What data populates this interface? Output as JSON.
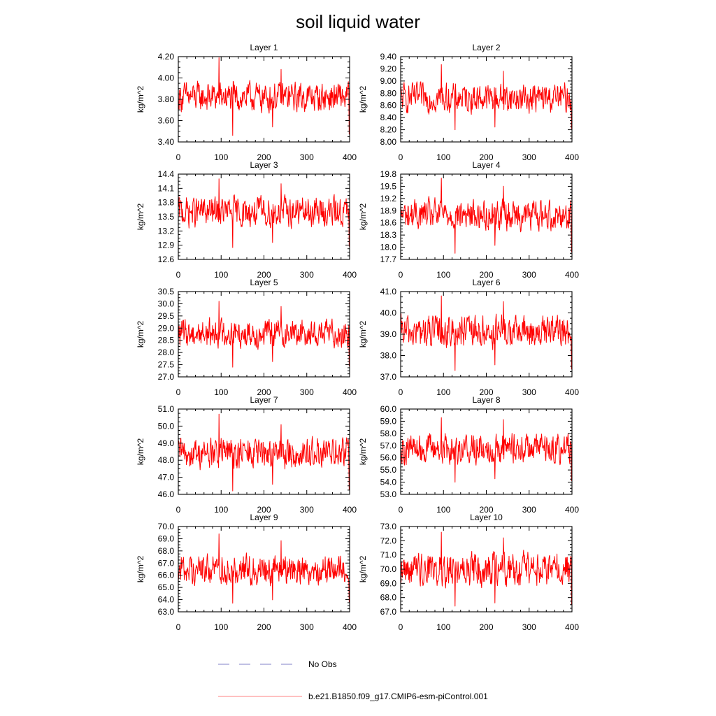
{
  "figure": {
    "title": "soil liquid water"
  },
  "legend": [
    {
      "label": "No Obs",
      "color": "#8080c8",
      "style": "dashed"
    },
    {
      "label": "b.e21.B1850.f09_g17.CMIP6-esm-piControl.001",
      "color": "#ff8080",
      "style": "solid"
    }
  ],
  "colors": {
    "series": "#ff0000",
    "obs": "#8080c8",
    "case": "#ff8080",
    "axis": "#000000"
  },
  "chart_data": [
    {
      "type": "line",
      "title": "Layer 1",
      "ylabel": "kg/m^2",
      "xlabel": "",
      "xlim": [
        0,
        400
      ],
      "ylim": [
        3.4,
        4.2
      ],
      "xticks": [
        0,
        100,
        200,
        300,
        400
      ],
      "yticks": [
        3.4,
        3.6,
        3.8,
        4.0,
        4.2
      ],
      "ytick_labels": [
        "3.40",
        "3.60",
        "3.80",
        "4.00",
        "4.20"
      ],
      "series": [
        {
          "name": "b.e21.B1850.f09_g17.CMIP6-esm-piControl.001",
          "n_points": 400,
          "mean": 3.82,
          "amplitude": 0.1,
          "min": 3.46,
          "max": 4.19
        }
      ]
    },
    {
      "type": "line",
      "title": "Layer 2",
      "ylabel": "kg/m^2",
      "xlabel": "",
      "xlim": [
        0,
        400
      ],
      "ylim": [
        8.0,
        9.4
      ],
      "xticks": [
        0,
        100,
        200,
        300,
        400
      ],
      "yticks": [
        8.0,
        8.2,
        8.4,
        8.6,
        8.8,
        9.0,
        9.2,
        9.4
      ],
      "ytick_labels": [
        "8.00",
        "8.20",
        "8.40",
        "8.60",
        "8.80",
        "9.00",
        "9.20",
        "9.40"
      ],
      "series": [
        {
          "name": "b.e21.B1850.f09_g17.CMIP6-esm-piControl.001",
          "n_points": 400,
          "mean": 8.72,
          "amplitude": 0.17,
          "min": 8.2,
          "max": 9.27
        }
      ]
    },
    {
      "type": "line",
      "title": "Layer 3",
      "ylabel": "kg/m^2",
      "xlabel": "",
      "xlim": [
        0,
        400
      ],
      "ylim": [
        12.6,
        14.4
      ],
      "xticks": [
        0,
        100,
        200,
        300,
        400
      ],
      "yticks": [
        12.6,
        12.9,
        13.2,
        13.5,
        13.8,
        14.1,
        14.4
      ],
      "ytick_labels": [
        "12.6",
        "12.9",
        "13.2",
        "13.5",
        "13.8",
        "14.1",
        "14.4"
      ],
      "series": [
        {
          "name": "b.e21.B1850.f09_g17.CMIP6-esm-piControl.001",
          "n_points": 400,
          "mean": 13.6,
          "amplitude": 0.23,
          "min": 12.85,
          "max": 14.3
        }
      ]
    },
    {
      "type": "line",
      "title": "Layer 4",
      "ylabel": "kg/m^2",
      "xlabel": "",
      "xlim": [
        0,
        400
      ],
      "ylim": [
        17.7,
        19.8
      ],
      "xticks": [
        0,
        100,
        200,
        300,
        400
      ],
      "yticks": [
        17.7,
        18.0,
        18.3,
        18.6,
        18.9,
        19.2,
        19.5,
        19.8
      ],
      "ytick_labels": [
        "17.7",
        "18.0",
        "18.3",
        "18.6",
        "18.9",
        "19.2",
        "19.5",
        "19.8"
      ],
      "series": [
        {
          "name": "b.e21.B1850.f09_g17.CMIP6-esm-piControl.001",
          "n_points": 400,
          "mean": 18.8,
          "amplitude": 0.27,
          "min": 17.85,
          "max": 19.7
        }
      ]
    },
    {
      "type": "line",
      "title": "Layer 5",
      "ylabel": "kg/m^2",
      "xlabel": "",
      "xlim": [
        0,
        400
      ],
      "ylim": [
        27.0,
        30.5
      ],
      "xticks": [
        0,
        100,
        200,
        300,
        400
      ],
      "yticks": [
        27.0,
        27.5,
        28.0,
        28.5,
        29.0,
        29.5,
        30.0,
        30.5
      ],
      "ytick_labels": [
        "27.0",
        "27.5",
        "28.0",
        "28.5",
        "29.0",
        "29.5",
        "30.0",
        "30.5"
      ],
      "series": [
        {
          "name": "b.e21.B1850.f09_g17.CMIP6-esm-piControl.001",
          "n_points": 400,
          "mean": 28.8,
          "amplitude": 0.42,
          "min": 27.4,
          "max": 30.1
        }
      ]
    },
    {
      "type": "line",
      "title": "Layer 6",
      "ylabel": "kg/m^2",
      "xlabel": "",
      "xlim": [
        0,
        400
      ],
      "ylim": [
        37.0,
        41.0
      ],
      "xticks": [
        0,
        100,
        200,
        300,
        400
      ],
      "yticks": [
        37.0,
        38.0,
        39.0,
        40.0,
        41.0
      ],
      "ytick_labels": [
        "37.0",
        "38.0",
        "39.0",
        "40.0",
        "41.0"
      ],
      "series": [
        {
          "name": "b.e21.B1850.f09_g17.CMIP6-esm-piControl.001",
          "n_points": 400,
          "mean": 39.1,
          "amplitude": 0.55,
          "min": 37.3,
          "max": 40.8
        }
      ]
    },
    {
      "type": "line",
      "title": "Layer 7",
      "ylabel": "kg/m^2",
      "xlabel": "",
      "xlim": [
        0,
        400
      ],
      "ylim": [
        46.0,
        51.0
      ],
      "xticks": [
        0,
        100,
        200,
        300,
        400
      ],
      "yticks": [
        46.0,
        47.0,
        48.0,
        49.0,
        50.0,
        51.0
      ],
      "ytick_labels": [
        "46.0",
        "47.0",
        "48.0",
        "49.0",
        "50.0",
        "51.0"
      ],
      "series": [
        {
          "name": "b.e21.B1850.f09_g17.CMIP6-esm-piControl.001",
          "n_points": 400,
          "mean": 48.4,
          "amplitude": 0.65,
          "min": 46.2,
          "max": 50.7
        }
      ]
    },
    {
      "type": "line",
      "title": "Layer 8",
      "ylabel": "kg/m^2",
      "xlabel": "",
      "xlim": [
        0,
        400
      ],
      "ylim": [
        53.0,
        60.0
      ],
      "xticks": [
        0,
        100,
        200,
        300,
        400
      ],
      "yticks": [
        53.0,
        54.0,
        55.0,
        56.0,
        57.0,
        58.0,
        59.0,
        60.0
      ],
      "ytick_labels": [
        "53.0",
        "54.0",
        "55.0",
        "56.0",
        "57.0",
        "58.0",
        "59.0",
        "60.0"
      ],
      "series": [
        {
          "name": "b.e21.B1850.f09_g17.CMIP6-esm-piControl.001",
          "n_points": 400,
          "mean": 56.8,
          "amplitude": 0.9,
          "min": 54.0,
          "max": 59.3
        }
      ]
    },
    {
      "type": "line",
      "title": "Layer 9",
      "ylabel": "kg/m^2",
      "xlabel": "",
      "xlim": [
        0,
        400
      ],
      "ylim": [
        63.0,
        70.0
      ],
      "xticks": [
        0,
        100,
        200,
        300,
        400
      ],
      "yticks": [
        63.0,
        64.0,
        65.0,
        66.0,
        67.0,
        68.0,
        69.0,
        70.0
      ],
      "ytick_labels": [
        "63.0",
        "64.0",
        "65.0",
        "66.0",
        "67.0",
        "68.0",
        "69.0",
        "70.0"
      ],
      "series": [
        {
          "name": "b.e21.B1850.f09_g17.CMIP6-esm-piControl.001",
          "n_points": 400,
          "mean": 66.5,
          "amplitude": 0.9,
          "min": 63.7,
          "max": 69.4
        }
      ]
    },
    {
      "type": "line",
      "title": "Layer 10",
      "ylabel": "kg/m^2",
      "xlabel": "",
      "xlim": [
        0,
        400
      ],
      "ylim": [
        67.0,
        73.0
      ],
      "xticks": [
        0,
        100,
        200,
        300,
        400
      ],
      "yticks": [
        67.0,
        68.0,
        69.0,
        70.0,
        71.0,
        72.0,
        73.0
      ],
      "ytick_labels": [
        "67.0",
        "68.0",
        "69.0",
        "70.0",
        "71.0",
        "72.0",
        "73.0"
      ],
      "series": [
        {
          "name": "b.e21.B1850.f09_g17.CMIP6-esm-piControl.001",
          "n_points": 400,
          "mean": 70.0,
          "amplitude": 0.85,
          "min": 67.4,
          "max": 72.6
        }
      ]
    }
  ]
}
